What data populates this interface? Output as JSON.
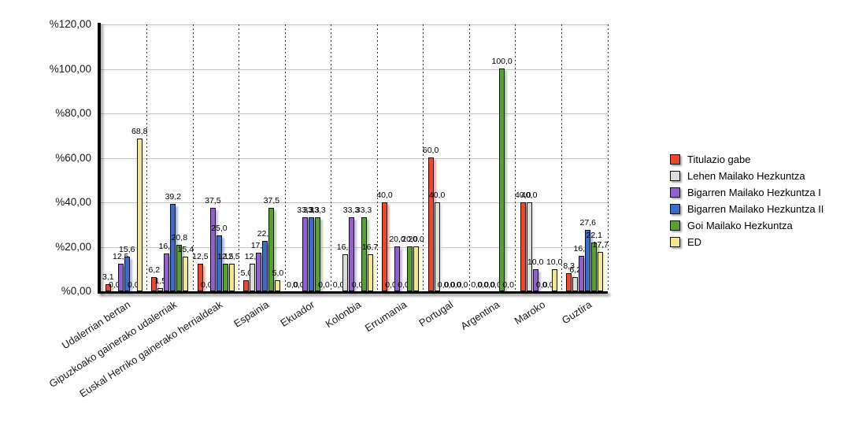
{
  "chart_data": {
    "type": "bar",
    "title": "",
    "xlabel": "",
    "ylabel": "",
    "ylim": [
      0,
      120
    ],
    "grid": true,
    "legend_position": "right",
    "y_ticks": [
      "%0,00",
      "%20,00",
      "%40,00",
      "%60,00",
      "%80,00",
      "%100,00",
      "%120,00"
    ],
    "y_tick_values": [
      0,
      20,
      40,
      60,
      80,
      100,
      120
    ],
    "categories": [
      "Udalerrian bertan",
      "Gipuzkoako gainerako udalerriak",
      "Euskal Herriko gainerako herrialdeak",
      "Espainia",
      "Ekuador",
      "Kolonbia",
      "Errumania",
      "Portugal",
      "Argentina",
      "Maroko",
      "Guztira"
    ],
    "series": [
      {
        "name": "Titulazio gabe",
        "color": "#E9492B",
        "values": [
          3.1,
          6.2,
          12.5,
          5.0,
          0.0,
          0.0,
          40.0,
          60.0,
          0.0,
          40.0,
          8.3
        ]
      },
      {
        "name": "Lehen Mailako Hezkuntza",
        "color": "#DCDCDC",
        "values": [
          0.0,
          1.5,
          0.0,
          12.5,
          0.0,
          16.7,
          0.0,
          40.0,
          0.0,
          40.0,
          6.2
        ]
      },
      {
        "name": "Bigarren Mailako Hezkuntza I",
        "color": "#9161C9",
        "values": [
          12.5,
          16.9,
          37.5,
          17.5,
          33.3,
          33.3,
          20.0,
          0.0,
          0.0,
          10.0,
          16.0
        ]
      },
      {
        "name": "Bigarren Mailako Hezkuntza II",
        "color": "#3D6CC7",
        "values": [
          15.6,
          39.2,
          25.0,
          22.5,
          33.3,
          0.0,
          0.0,
          0.0,
          0.0,
          0.0,
          27.6
        ]
      },
      {
        "name": "Goi Mailako Hezkuntza",
        "color": "#58A033",
        "values": [
          0.0,
          20.8,
          12.5,
          37.5,
          33.3,
          33.3,
          20.0,
          0.0,
          100.0,
          0.0,
          22.1
        ]
      },
      {
        "name": "ED",
        "color": "#F1E78E",
        "values": [
          68.8,
          15.4,
          12.5,
          5.0,
          0.0,
          16.7,
          20.0,
          0.0,
          0.0,
          10.0,
          17.7
        ]
      }
    ],
    "value_label_decimal_separator": ","
  },
  "layout_note_colors": {
    "gridline": "#c6c6c6",
    "axis": "#000000",
    "background": "#ffffff"
  }
}
